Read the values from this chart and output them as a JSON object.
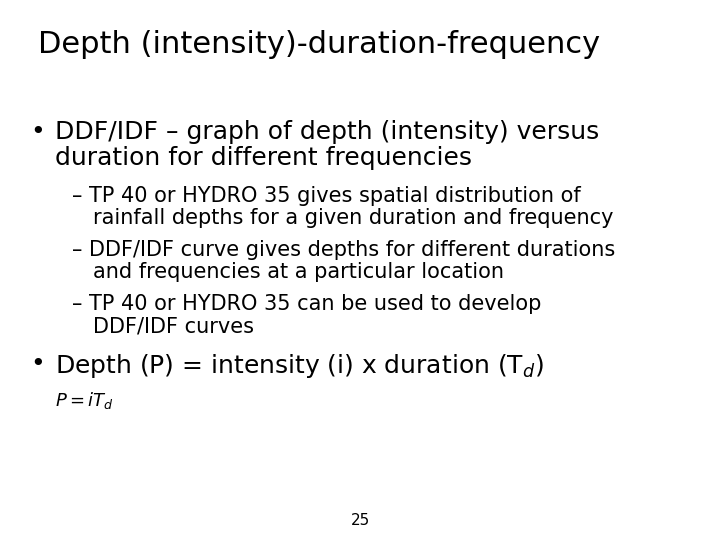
{
  "title": "Depth (intensity)-duration-frequency",
  "title_fontsize": 22,
  "background_color": "#ffffff",
  "text_color": "#000000",
  "bullet1_line1": "DDF/IDF – graph of depth (intensity) versus",
  "bullet1_line2": "duration for different frequencies",
  "sub1_line1": "– TP 40 or HYDRO 35 gives spatial distribution of",
  "sub1_line2": "   rainfall depths for a given duration and frequency",
  "sub2_line1": "– DDF/IDF curve gives depths for different durations",
  "sub2_line2": "   and frequencies at a particular location",
  "sub3_line1": "– TP 40 or HYDRO 35 can be used to develop",
  "sub3_line2": "   DDF/IDF curves",
  "bullet2_text": "Depth (P) = intensity (i) x duration (T$_d$)",
  "formula": "$P = iT_d$",
  "page_number": "25",
  "title_fontsize_pt": 22,
  "bullet_fontsize_pt": 18,
  "sub_fontsize_pt": 15,
  "formula_fontsize_pt": 13,
  "page_fontsize_pt": 11
}
